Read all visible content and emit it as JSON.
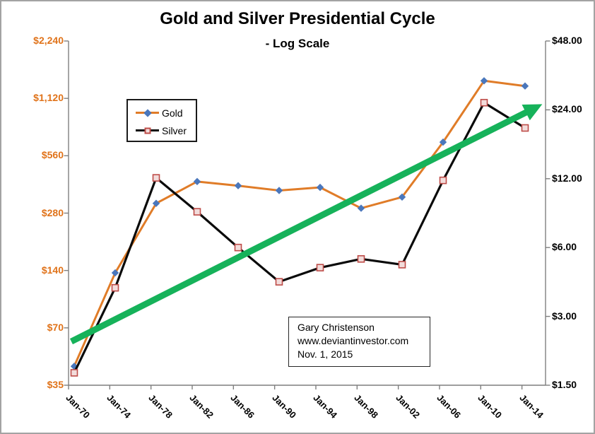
{
  "chart_data": {
    "type": "line",
    "title": "Gold and Silver Presidential Cycle",
    "subtitle": "- Log Scale",
    "scale": "log2",
    "grid": false,
    "categories": [
      "Jan-70",
      "Jan-74",
      "Jan-78",
      "Jan-82",
      "Jan-86",
      "Jan-90",
      "Jan-94",
      "Jan-98",
      "Jan-02",
      "Jan-06",
      "Jan-10",
      "Jan-14"
    ],
    "series": [
      {
        "name": "Gold",
        "axis": "left",
        "color": "#E07C28",
        "marker": "diamond",
        "marker_color": "#4A77BC",
        "values": [
          44,
          136,
          315,
          410,
          390,
          368,
          382,
          297,
          340,
          660,
          1385,
          1300
        ]
      },
      {
        "name": "Silver",
        "axis": "right",
        "color": "#0a0a0a",
        "marker": "square",
        "marker_fill": "#F2DCDB",
        "marker_border": "#BE4C48",
        "values": [
          1.7,
          4.0,
          12.1,
          8.6,
          6.0,
          4.25,
          4.9,
          5.35,
          5.05,
          11.8,
          25.8,
          20.0
        ]
      }
    ],
    "left_axis": {
      "ticks": [
        "$2,240",
        "$1,120",
        "$560",
        "$280",
        "$140",
        "$70",
        "$35"
      ],
      "min": 35,
      "max": 2240,
      "color": "#E0731A"
    },
    "right_axis": {
      "ticks": [
        "$48.00",
        "$24.00",
        "$12.00",
        "$6.00",
        "$3.00",
        "$1.50"
      ],
      "min": 1.5,
      "max": 48,
      "color": "#000000"
    },
    "trend_arrow": {
      "color": "#16B25A",
      "description": "thick green upward trend arrow",
      "start": {
        "x_index": -0.07,
        "right_axis_value": 2.33
      },
      "end": {
        "x_index": 11.42,
        "right_axis_value": 25.4
      }
    },
    "legend_position": "upper-left-inside"
  },
  "annotation": {
    "lines": [
      "Gary Christenson",
      "www.deviantinvestor.com",
      "Nov. 1, 2015"
    ]
  }
}
